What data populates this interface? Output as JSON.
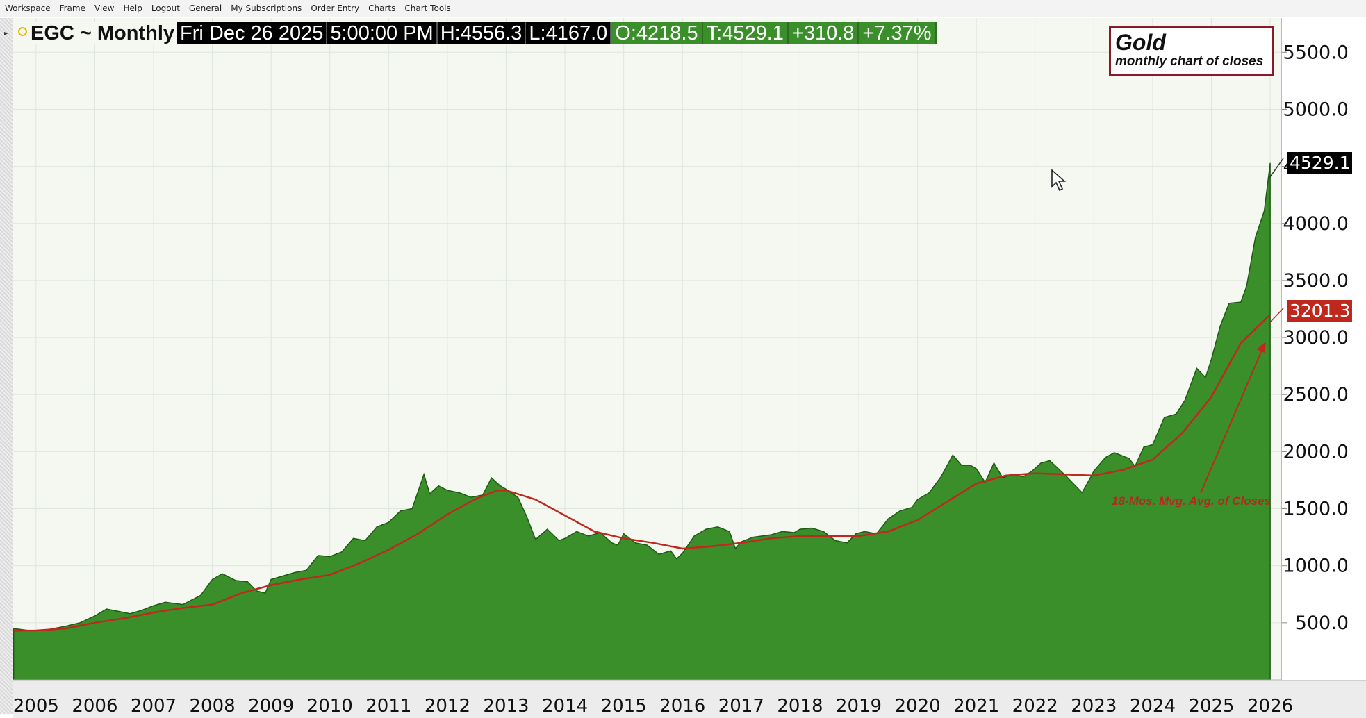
{
  "menu": [
    "Workspace",
    "Frame",
    "View",
    "Help",
    "Logout",
    "General",
    "My Subscriptions",
    "Order Entry",
    "Charts",
    "Chart Tools"
  ],
  "header": {
    "symbol": "EGC ~ Monthly",
    "date": "Fri Dec 26 2025",
    "time": "5:00:00 PM",
    "high": "H:4556.3",
    "low": "L:4167.0",
    "open": "O:4218.5",
    "last": "T:4529.1",
    "change": "+310.8",
    "change_pct": "+7.37%"
  },
  "title_box": {
    "title": "Gold",
    "subtitle": "monthly chart of closes"
  },
  "tags": {
    "last": "4529.1",
    "ma": "3201.3"
  },
  "annotation": "18-Mos. Mvg. Avg. of Closes",
  "colors": {
    "area": "#3a8f2b",
    "area_stroke": "#1f5a14",
    "ma": "#c0281d",
    "plot_bg": "#f4f8f1",
    "grid": "#dfe6dc",
    "title_border": "#8a1a2a"
  },
  "chart_data": {
    "type": "area",
    "title": "Gold",
    "subtitle": "monthly chart of closes",
    "x_ticks": [
      "2005",
      "2006",
      "2007",
      "2008",
      "2009",
      "2010",
      "2011",
      "2012",
      "2013",
      "2014",
      "2015",
      "2016",
      "2017",
      "2018",
      "2019",
      "2020",
      "2021",
      "2022",
      "2023",
      "2024",
      "2025",
      "2026"
    ],
    "y_ticks": [
      "500.0",
      "1000.0",
      "1500.0",
      "2000.0",
      "2500.0",
      "3000.0",
      "3500.0",
      "4000.0",
      "4500.0",
      "5000.0",
      "5500.0"
    ],
    "ylim": [
      0,
      5800
    ],
    "xlim": [
      2004.6,
      2026.2
    ],
    "grid": true,
    "series": [
      {
        "name": "",
        "type": "area",
        "points": [
          [
            2004.62,
            450
          ],
          [
            2004.9,
            430
          ],
          [
            2005.2,
            440
          ],
          [
            2005.5,
            470
          ],
          [
            2005.75,
            500
          ],
          [
            2006.0,
            560
          ],
          [
            2006.2,
            620
          ],
          [
            2006.4,
            600
          ],
          [
            2006.6,
            580
          ],
          [
            2006.8,
            610
          ],
          [
            2007.0,
            650
          ],
          [
            2007.2,
            680
          ],
          [
            2007.5,
            660
          ],
          [
            2007.8,
            740
          ],
          [
            2008.0,
            880
          ],
          [
            2008.17,
            930
          ],
          [
            2008.4,
            870
          ],
          [
            2008.6,
            860
          ],
          [
            2008.75,
            780
          ],
          [
            2008.9,
            760
          ],
          [
            2009.0,
            880
          ],
          [
            2009.2,
            910
          ],
          [
            2009.4,
            940
          ],
          [
            2009.6,
            960
          ],
          [
            2009.8,
            1090
          ],
          [
            2010.0,
            1080
          ],
          [
            2010.2,
            1120
          ],
          [
            2010.4,
            1240
          ],
          [
            2010.6,
            1220
          ],
          [
            2010.8,
            1340
          ],
          [
            2011.0,
            1380
          ],
          [
            2011.2,
            1480
          ],
          [
            2011.4,
            1500
          ],
          [
            2011.6,
            1800
          ],
          [
            2011.7,
            1630
          ],
          [
            2011.85,
            1700
          ],
          [
            2012.0,
            1660
          ],
          [
            2012.2,
            1640
          ],
          [
            2012.4,
            1600
          ],
          [
            2012.6,
            1620
          ],
          [
            2012.75,
            1770
          ],
          [
            2012.9,
            1700
          ],
          [
            2013.0,
            1670
          ],
          [
            2013.2,
            1600
          ],
          [
            2013.35,
            1430
          ],
          [
            2013.5,
            1230
          ],
          [
            2013.7,
            1320
          ],
          [
            2013.9,
            1220
          ],
          [
            2014.0,
            1240
          ],
          [
            2014.2,
            1300
          ],
          [
            2014.4,
            1260
          ],
          [
            2014.6,
            1290
          ],
          [
            2014.8,
            1200
          ],
          [
            2014.9,
            1180
          ],
          [
            2015.0,
            1280
          ],
          [
            2015.2,
            1200
          ],
          [
            2015.4,
            1180
          ],
          [
            2015.6,
            1100
          ],
          [
            2015.8,
            1130
          ],
          [
            2015.9,
            1060
          ],
          [
            2016.0,
            1110
          ],
          [
            2016.2,
            1260
          ],
          [
            2016.4,
            1320
          ],
          [
            2016.6,
            1340
          ],
          [
            2016.8,
            1300
          ],
          [
            2016.9,
            1150
          ],
          [
            2017.0,
            1210
          ],
          [
            2017.2,
            1250
          ],
          [
            2017.5,
            1270
          ],
          [
            2017.7,
            1300
          ],
          [
            2017.9,
            1290
          ],
          [
            2018.0,
            1320
          ],
          [
            2018.2,
            1330
          ],
          [
            2018.4,
            1300
          ],
          [
            2018.6,
            1220
          ],
          [
            2018.8,
            1200
          ],
          [
            2018.95,
            1280
          ],
          [
            2019.1,
            1300
          ],
          [
            2019.3,
            1280
          ],
          [
            2019.5,
            1410
          ],
          [
            2019.7,
            1480
          ],
          [
            2019.9,
            1510
          ],
          [
            2020.0,
            1580
          ],
          [
            2020.2,
            1640
          ],
          [
            2020.4,
            1780
          ],
          [
            2020.6,
            1970
          ],
          [
            2020.75,
            1880
          ],
          [
            2020.9,
            1880
          ],
          [
            2021.0,
            1850
          ],
          [
            2021.15,
            1730
          ],
          [
            2021.3,
            1900
          ],
          [
            2021.45,
            1770
          ],
          [
            2021.6,
            1800
          ],
          [
            2021.8,
            1780
          ],
          [
            2021.95,
            1830
          ],
          [
            2022.1,
            1900
          ],
          [
            2022.25,
            1920
          ],
          [
            2022.5,
            1800
          ],
          [
            2022.65,
            1720
          ],
          [
            2022.8,
            1640
          ],
          [
            2022.95,
            1780
          ],
          [
            2023.0,
            1830
          ],
          [
            2023.2,
            1950
          ],
          [
            2023.35,
            1990
          ],
          [
            2023.6,
            1940
          ],
          [
            2023.7,
            1870
          ],
          [
            2023.85,
            2040
          ],
          [
            2024.0,
            2060
          ],
          [
            2024.2,
            2300
          ],
          [
            2024.4,
            2330
          ],
          [
            2024.55,
            2450
          ],
          [
            2024.75,
            2730
          ],
          [
            2024.9,
            2650
          ],
          [
            2025.0,
            2810
          ],
          [
            2025.15,
            3100
          ],
          [
            2025.3,
            3300
          ],
          [
            2025.5,
            3310
          ],
          [
            2025.6,
            3450
          ],
          [
            2025.75,
            3880
          ],
          [
            2025.9,
            4110
          ],
          [
            2026.0,
            4529.1
          ]
        ]
      },
      {
        "name": "18-Mos. Mvg. Avg. of Closes",
        "type": "line",
        "points": [
          [
            2004.62,
            430
          ],
          [
            2005.0,
            432
          ],
          [
            2005.5,
            450
          ],
          [
            2006.0,
            500
          ],
          [
            2006.5,
            540
          ],
          [
            2007.0,
            590
          ],
          [
            2007.5,
            630
          ],
          [
            2008.0,
            660
          ],
          [
            2008.5,
            760
          ],
          [
            2009.0,
            830
          ],
          [
            2009.5,
            880
          ],
          [
            2010.0,
            920
          ],
          [
            2010.5,
            1020
          ],
          [
            2011.0,
            1140
          ],
          [
            2011.5,
            1280
          ],
          [
            2012.0,
            1450
          ],
          [
            2012.5,
            1590
          ],
          [
            2012.85,
            1660
          ],
          [
            2013.0,
            1660
          ],
          [
            2013.5,
            1580
          ],
          [
            2014.0,
            1440
          ],
          [
            2014.5,
            1300
          ],
          [
            2015.0,
            1240
          ],
          [
            2015.5,
            1200
          ],
          [
            2016.0,
            1150
          ],
          [
            2016.5,
            1170
          ],
          [
            2017.0,
            1200
          ],
          [
            2017.5,
            1240
          ],
          [
            2018.0,
            1260
          ],
          [
            2018.5,
            1260
          ],
          [
            2019.0,
            1260
          ],
          [
            2019.5,
            1300
          ],
          [
            2020.0,
            1400
          ],
          [
            2020.5,
            1560
          ],
          [
            2021.0,
            1720
          ],
          [
            2021.5,
            1790
          ],
          [
            2022.0,
            1810
          ],
          [
            2022.5,
            1800
          ],
          [
            2023.0,
            1790
          ],
          [
            2023.5,
            1840
          ],
          [
            2024.0,
            1930
          ],
          [
            2024.5,
            2160
          ],
          [
            2025.0,
            2480
          ],
          [
            2025.5,
            2950
          ],
          [
            2026.0,
            3201.3
          ]
        ]
      }
    ],
    "last_value": 4529.1,
    "ma_value": 3201.3
  }
}
